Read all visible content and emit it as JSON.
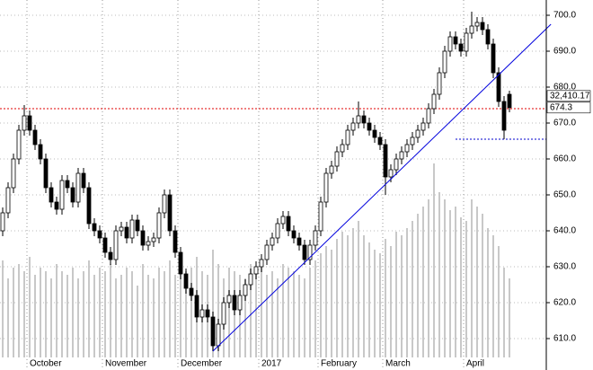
{
  "chart_data": {
    "type": "candlestick",
    "categories": [
      null,
      null,
      null,
      null,
      null,
      "October",
      null,
      null,
      null,
      null,
      null,
      null,
      null,
      null,
      null,
      null,
      null,
      null,
      null,
      "November",
      null,
      null,
      null,
      null,
      null,
      null,
      null,
      null,
      null,
      null,
      null,
      null,
      null,
      "December",
      null,
      null,
      null,
      null,
      null,
      null,
      null,
      null,
      null,
      null,
      null,
      null,
      null,
      null,
      "2017",
      null,
      null,
      null,
      null,
      null,
      null,
      null,
      null,
      null,
      null,
      "February",
      null,
      null,
      null,
      null,
      null,
      null,
      null,
      null,
      null,
      null,
      null,
      "March",
      null,
      null,
      null,
      null,
      null,
      null,
      null,
      null,
      null,
      null,
      null,
      null,
      null,
      null,
      "April",
      null,
      null,
      null,
      null,
      null,
      null,
      null,
      null
    ],
    "open": [
      640,
      645,
      652,
      660,
      668,
      672,
      668,
      664,
      660,
      652,
      648,
      646,
      654,
      652,
      648,
      656,
      652,
      642,
      640,
      638,
      634,
      632,
      640,
      641,
      638,
      643,
      640,
      636,
      637,
      638,
      645,
      650,
      640,
      634,
      628,
      624,
      622,
      616,
      618,
      616,
      608,
      614,
      620,
      622,
      618,
      622,
      625,
      628,
      630,
      632,
      636,
      638,
      642,
      644,
      640,
      638,
      636,
      632,
      636,
      640,
      648,
      656,
      658,
      662,
      664,
      668,
      670,
      672,
      670,
      668,
      666,
      664,
      655,
      657,
      660,
      662,
      664,
      666,
      668,
      670,
      674,
      678,
      684,
      690,
      694,
      692,
      690,
      695,
      697,
      698,
      696,
      692,
      684,
      676,
      678
    ],
    "high": [
      646.5,
      653.5,
      661.5,
      669.5,
      675,
      673.5,
      669.5,
      665.5,
      661.5,
      653.5,
      649.5,
      655.5,
      655.5,
      653.5,
      657.5,
      657.5,
      653.5,
      643.5,
      641.5,
      639.5,
      635.5,
      641.5,
      642.5,
      642.5,
      644.5,
      644.5,
      641.5,
      638.5,
      639.5,
      646.5,
      651.5,
      651.5,
      641.5,
      635.5,
      629.5,
      625.5,
      623.5,
      619.5,
      619.5,
      617.5,
      615.5,
      621.5,
      623.5,
      623.5,
      623.5,
      626.5,
      629.5,
      631.5,
      633.5,
      637.5,
      639.5,
      643.5,
      645.5,
      645.5,
      641.5,
      639.5,
      637.5,
      637.5,
      641.5,
      649.5,
      657.5,
      659.5,
      663.5,
      665.5,
      669.5,
      671.5,
      676,
      673.5,
      671.5,
      669.5,
      667.5,
      665.5,
      658.5,
      661.5,
      663.5,
      665.5,
      667.5,
      669.5,
      671.5,
      675.5,
      679.5,
      685.5,
      691.5,
      695.5,
      695.5,
      693.5,
      696.5,
      701,
      699.5,
      699.5,
      697.5,
      693.5,
      685.5,
      677.5,
      679
    ],
    "low": [
      638.5,
      643.5,
      650.5,
      658.5,
      666.5,
      666.5,
      662.5,
      658.5,
      650.5,
      646.5,
      644.5,
      644.5,
      650.5,
      646.5,
      646.5,
      650.5,
      640.5,
      638.5,
      636.5,
      632.5,
      630.5,
      630.5,
      638.5,
      636.5,
      636.5,
      638.5,
      634.5,
      634.5,
      635.5,
      636.5,
      643.5,
      638.5,
      632.5,
      626.5,
      622.5,
      620.5,
      614.5,
      614.5,
      614.5,
      606.5,
      606.5,
      612.5,
      618.5,
      616.5,
      616.5,
      620.5,
      623.5,
      626.5,
      628.5,
      630.5,
      634.5,
      636.5,
      640.5,
      638.5,
      636.5,
      634.5,
      630.5,
      630.5,
      634.5,
      638.5,
      646.5,
      654.5,
      656.5,
      660.5,
      662.5,
      666.5,
      668.5,
      668.5,
      666.5,
      664.5,
      662.5,
      650,
      653.5,
      655.5,
      658.5,
      660.5,
      662.5,
      664.5,
      666.5,
      668.5,
      672.5,
      676.5,
      682.5,
      688.5,
      690.5,
      688.5,
      688.5,
      693.5,
      695.5,
      694.5,
      690.5,
      682.5,
      674.5,
      665.5,
      673
    ],
    "close": [
      645,
      652,
      660,
      668,
      672,
      668,
      664,
      660,
      652,
      648,
      646,
      654,
      652,
      648,
      656,
      652,
      642,
      640,
      638,
      634,
      632,
      640,
      641,
      638,
      643,
      640,
      636,
      637,
      638,
      645,
      650,
      640,
      634,
      628,
      624,
      622,
      616,
      618,
      616,
      608,
      614,
      620,
      622,
      618,
      622,
      625,
      628,
      630,
      632,
      636,
      638,
      642,
      644,
      640,
      638,
      636,
      632,
      636,
      640,
      648,
      656,
      658,
      662,
      664,
      668,
      670,
      672,
      670,
      668,
      666,
      664,
      655,
      657,
      660,
      662,
      664,
      666,
      668,
      670,
      674,
      678,
      684,
      690,
      694,
      692,
      690,
      695,
      697,
      698,
      696,
      692,
      684,
      676,
      668,
      674.3
    ],
    "volume": [
      27,
      22,
      25,
      26,
      24,
      28,
      23,
      25,
      24,
      22,
      26,
      24,
      23,
      25,
      22,
      24,
      27,
      23,
      25,
      24,
      26,
      22,
      23,
      25,
      24,
      20,
      26,
      23,
      22,
      25,
      24,
      27,
      23,
      26,
      24,
      25,
      28,
      24,
      23,
      30,
      26,
      22,
      25,
      24,
      23,
      22,
      26,
      24,
      25,
      23,
      24,
      22,
      26,
      25,
      24,
      23,
      22,
      25,
      27,
      29,
      31,
      30,
      33,
      35,
      34,
      36,
      38,
      34,
      32,
      30,
      29,
      33,
      31,
      35,
      34,
      36,
      38,
      40,
      42,
      44,
      54,
      46,
      44,
      41,
      42,
      39,
      38,
      44,
      42,
      40,
      36,
      34,
      31,
      25,
      22
    ],
    "up_color": "#ffffff",
    "down_color": "#000000",
    "volume_color": "#c8c8c8",
    "ylim": [
      604.75,
      704.25
    ],
    "yticks": [
      {
        "value": 610,
        "label": "610.0"
      },
      {
        "value": 620,
        "label": "620.0"
      },
      {
        "value": 630,
        "label": "630.0"
      },
      {
        "value": 640,
        "label": "640.0"
      },
      {
        "value": 650,
        "label": "650.0"
      },
      {
        "value": 660,
        "label": "660.0"
      },
      {
        "value": 670,
        "label": "670.0"
      },
      {
        "value": 680,
        "label": "680.0"
      },
      {
        "value": 690,
        "label": "690.0"
      },
      {
        "value": 700,
        "label": "700.0"
      }
    ],
    "grid": true,
    "hlines": [
      {
        "value": 674,
        "color": "#e00000",
        "from_index": 0
      },
      {
        "value": 665.5,
        "color": "#0000cc",
        "from_index": 84
      }
    ],
    "trendline": {
      "start": [
        39,
        606.5
      ],
      "end": [
        101.7,
        697.5
      ],
      "color": "#0000dd"
    },
    "annotations": [
      {
        "text": "32,410.17"
      },
      {
        "text": "674.3"
      }
    ]
  }
}
